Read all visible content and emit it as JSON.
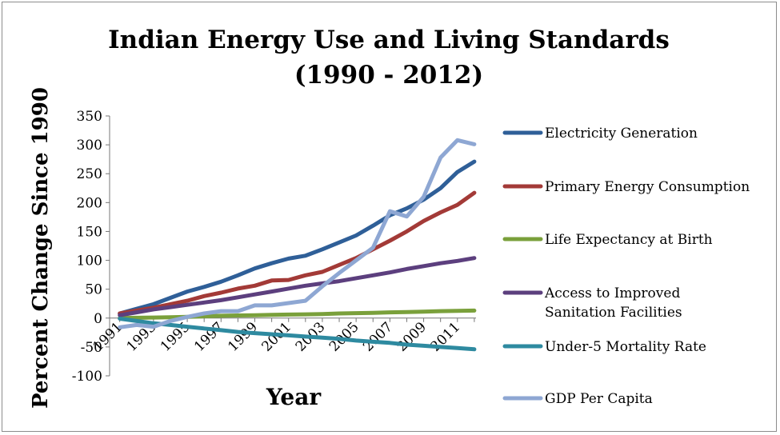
{
  "chart_data": {
    "type": "line",
    "title": [
      "Indian Energy Use and Living Standards",
      "(1990 - 2012)"
    ],
    "xlabel": "Year",
    "ylabel": "Percent Change Since 1990",
    "ylim": [
      -100,
      350
    ],
    "yticks": [
      350,
      300,
      250,
      200,
      150,
      100,
      50,
      0,
      -50,
      -100
    ],
    "x": [
      1991,
      1992,
      1993,
      1994,
      1995,
      1996,
      1997,
      1998,
      1999,
      2000,
      2001,
      2002,
      2003,
      2004,
      2005,
      2006,
      2007,
      2008,
      2009,
      2010,
      2011,
      2012
    ],
    "xtick_labels": [
      "1991",
      "1993",
      "1995",
      "1997",
      "1999",
      "2001",
      "2003",
      "2005",
      "2007",
      "2009",
      "2011"
    ],
    "grid": false,
    "legend_position": "right",
    "series": [
      {
        "name": "Electricity Generation",
        "color": "#2f5f98",
        "values": [
          8,
          16,
          24,
          35,
          46,
          54,
          63,
          74,
          86,
          95,
          103,
          108,
          119,
          131,
          143,
          160,
          178,
          190,
          205,
          225,
          253,
          271
        ]
      },
      {
        "name": "Primary Energy Consumption",
        "color": "#a33a37",
        "values": [
          8,
          13,
          18,
          24,
          30,
          38,
          44,
          51,
          56,
          65,
          66,
          74,
          80,
          92,
          104,
          119,
          134,
          150,
          168,
          183,
          196,
          217
        ]
      },
      {
        "name": "Life Expectancy at Birth",
        "color": "#7aa03b",
        "values": [
          0,
          0.5,
          1,
          1.5,
          2,
          3,
          4,
          4.5,
          5,
          5.5,
          6,
          6.5,
          7,
          8,
          8.5,
          9,
          10,
          10.5,
          11,
          12,
          12.5,
          13
        ]
      },
      {
        "name": "Access to Improved Sanitation Facilities",
        "color": "#5c3f7e",
        "values": [
          5,
          10,
          15,
          19,
          23,
          27,
          31,
          36,
          41,
          46,
          51,
          56,
          60,
          64,
          69,
          74,
          79,
          85,
          90,
          95,
          99,
          104
        ]
      },
      {
        "name": "Under-5 Mortality Rate",
        "color": "#2e8aa0",
        "values": [
          -1,
          -5,
          -9,
          -12,
          -15,
          -18,
          -21,
          -24,
          -26,
          -28,
          -30,
          -32,
          -34,
          -36,
          -39,
          -41,
          -43,
          -46,
          -48,
          -50,
          -52,
          -54
        ]
      },
      {
        "name": "GDP Per Capita",
        "color": "#8ea7d3",
        "values": [
          -16,
          -12,
          -15,
          -5,
          2,
          8,
          12,
          12,
          22,
          22,
          26,
          30,
          55,
          78,
          100,
          122,
          185,
          176,
          210,
          278,
          308,
          301
        ]
      }
    ]
  }
}
